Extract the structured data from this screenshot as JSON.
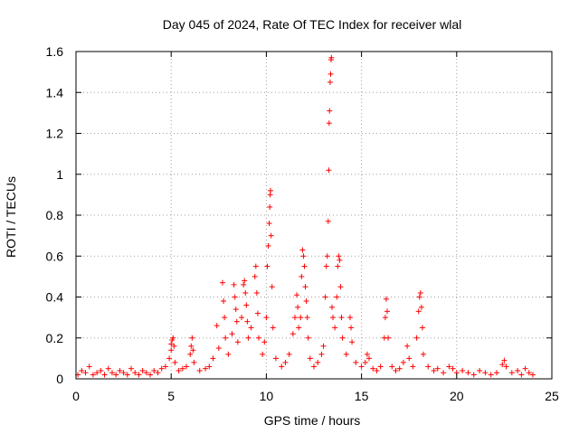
{
  "chart_data": {
    "type": "scatter",
    "title": "Day 045 of 2024, Rate Of TEC Index for receiver wlal",
    "xlabel": "GPS time / hours",
    "ylabel": "ROTI / TECUs",
    "xlim": [
      0,
      25
    ],
    "ylim": [
      0,
      1.6
    ],
    "x_ticks": [
      0,
      5,
      10,
      15,
      20,
      25
    ],
    "x_tick_labels": [
      "0",
      "5",
      "10",
      "15",
      "20",
      "25"
    ],
    "y_ticks": [
      0,
      0.2,
      0.4,
      0.6,
      0.8,
      1,
      1.2,
      1.4,
      1.6
    ],
    "y_tick_labels": [
      "0",
      "0.2",
      "0.4",
      "0.6",
      "0.8",
      "1",
      "1.2",
      "1.4",
      "1.6"
    ],
    "grid": true,
    "marker": "+",
    "series": [
      {
        "name": "ROTI",
        "color": "#ff0000",
        "points": [
          [
            0.1,
            0.02
          ],
          [
            0.3,
            0.04
          ],
          [
            0.5,
            0.03
          ],
          [
            0.7,
            0.06
          ],
          [
            0.9,
            0.02
          ],
          [
            1.1,
            0.03
          ],
          [
            1.3,
            0.04
          ],
          [
            1.5,
            0.02
          ],
          [
            1.7,
            0.05
          ],
          [
            1.9,
            0.03
          ],
          [
            2.1,
            0.02
          ],
          [
            2.3,
            0.04
          ],
          [
            2.5,
            0.03
          ],
          [
            2.7,
            0.02
          ],
          [
            2.9,
            0.05
          ],
          [
            3.1,
            0.03
          ],
          [
            3.3,
            0.02
          ],
          [
            3.5,
            0.04
          ],
          [
            3.7,
            0.03
          ],
          [
            3.9,
            0.02
          ],
          [
            4.1,
            0.04
          ],
          [
            4.3,
            0.03
          ],
          [
            4.5,
            0.05
          ],
          [
            4.7,
            0.06
          ],
          [
            4.9,
            0.1
          ],
          [
            5.0,
            0.14
          ],
          [
            5.0,
            0.17
          ],
          [
            5.05,
            0.19
          ],
          [
            5.1,
            0.2
          ],
          [
            5.15,
            0.16
          ],
          [
            5.2,
            0.08
          ],
          [
            5.4,
            0.04
          ],
          [
            5.6,
            0.05
          ],
          [
            5.8,
            0.06
          ],
          [
            6.0,
            0.12
          ],
          [
            6.05,
            0.16
          ],
          [
            6.1,
            0.2
          ],
          [
            6.15,
            0.14
          ],
          [
            6.2,
            0.08
          ],
          [
            6.5,
            0.04
          ],
          [
            6.8,
            0.05
          ],
          [
            7.0,
            0.06
          ],
          [
            7.2,
            0.1
          ],
          [
            7.4,
            0.26
          ],
          [
            7.5,
            0.15
          ],
          [
            7.7,
            0.47
          ],
          [
            7.75,
            0.38
          ],
          [
            7.8,
            0.3
          ],
          [
            7.85,
            0.2
          ],
          [
            8.0,
            0.12
          ],
          [
            8.2,
            0.22
          ],
          [
            8.3,
            0.46
          ],
          [
            8.35,
            0.4
          ],
          [
            8.4,
            0.34
          ],
          [
            8.45,
            0.28
          ],
          [
            8.5,
            0.18
          ],
          [
            8.7,
            0.3
          ],
          [
            8.8,
            0.46
          ],
          [
            8.85,
            0.48
          ],
          [
            8.9,
            0.42
          ],
          [
            8.95,
            0.36
          ],
          [
            9.0,
            0.28
          ],
          [
            9.05,
            0.2
          ],
          [
            9.2,
            0.25
          ],
          [
            9.4,
            0.5
          ],
          [
            9.45,
            0.55
          ],
          [
            9.5,
            0.42
          ],
          [
            9.55,
            0.32
          ],
          [
            9.6,
            0.2
          ],
          [
            9.8,
            0.12
          ],
          [
            9.9,
            0.18
          ],
          [
            10.0,
            0.3
          ],
          [
            10.05,
            0.55
          ],
          [
            10.1,
            0.65
          ],
          [
            10.15,
            0.76
          ],
          [
            10.18,
            0.84
          ],
          [
            10.2,
            0.9
          ],
          [
            10.22,
            0.92
          ],
          [
            10.25,
            0.7
          ],
          [
            10.3,
            0.45
          ],
          [
            10.35,
            0.25
          ],
          [
            10.5,
            0.1
          ],
          [
            10.8,
            0.06
          ],
          [
            11.0,
            0.08
          ],
          [
            11.2,
            0.12
          ],
          [
            11.4,
            0.22
          ],
          [
            11.5,
            0.3
          ],
          [
            11.6,
            0.41
          ],
          [
            11.65,
            0.35
          ],
          [
            11.7,
            0.25
          ],
          [
            11.8,
            0.3
          ],
          [
            11.85,
            0.5
          ],
          [
            11.9,
            0.63
          ],
          [
            11.95,
            0.6
          ],
          [
            12.0,
            0.55
          ],
          [
            12.05,
            0.45
          ],
          [
            12.1,
            0.38
          ],
          [
            12.15,
            0.3
          ],
          [
            12.2,
            0.2
          ],
          [
            12.3,
            0.1
          ],
          [
            12.5,
            0.06
          ],
          [
            12.7,
            0.08
          ],
          [
            12.9,
            0.12
          ],
          [
            13.0,
            0.16
          ],
          [
            13.1,
            0.4
          ],
          [
            13.15,
            0.55
          ],
          [
            13.2,
            0.6
          ],
          [
            13.25,
            0.77
          ],
          [
            13.28,
            1.02
          ],
          [
            13.3,
            1.25
          ],
          [
            13.32,
            1.31
          ],
          [
            13.35,
            1.45
          ],
          [
            13.38,
            1.49
          ],
          [
            13.4,
            1.56
          ],
          [
            13.42,
            1.57
          ],
          [
            13.45,
            0.35
          ],
          [
            13.5,
            0.3
          ],
          [
            13.6,
            0.25
          ],
          [
            13.7,
            0.4
          ],
          [
            13.75,
            0.55
          ],
          [
            13.8,
            0.6
          ],
          [
            13.85,
            0.58
          ],
          [
            13.9,
            0.45
          ],
          [
            13.95,
            0.3
          ],
          [
            14.0,
            0.2
          ],
          [
            14.2,
            0.12
          ],
          [
            14.4,
            0.3
          ],
          [
            14.45,
            0.25
          ],
          [
            14.5,
            0.18
          ],
          [
            14.7,
            0.08
          ],
          [
            15.0,
            0.06
          ],
          [
            15.2,
            0.08
          ],
          [
            15.3,
            0.12
          ],
          [
            15.4,
            0.1
          ],
          [
            15.6,
            0.05
          ],
          [
            15.8,
            0.04
          ],
          [
            16.0,
            0.06
          ],
          [
            16.2,
            0.2
          ],
          [
            16.25,
            0.3
          ],
          [
            16.3,
            0.39
          ],
          [
            16.35,
            0.33
          ],
          [
            16.4,
            0.2
          ],
          [
            16.6,
            0.06
          ],
          [
            16.8,
            0.04
          ],
          [
            17.0,
            0.05
          ],
          [
            17.2,
            0.08
          ],
          [
            17.4,
            0.16
          ],
          [
            17.5,
            0.1
          ],
          [
            17.7,
            0.06
          ],
          [
            17.9,
            0.2
          ],
          [
            18.0,
            0.33
          ],
          [
            18.05,
            0.4
          ],
          [
            18.1,
            0.42
          ],
          [
            18.15,
            0.35
          ],
          [
            18.2,
            0.25
          ],
          [
            18.25,
            0.12
          ],
          [
            18.5,
            0.06
          ],
          [
            18.8,
            0.04
          ],
          [
            19.0,
            0.05
          ],
          [
            19.3,
            0.03
          ],
          [
            19.6,
            0.06
          ],
          [
            19.8,
            0.05
          ],
          [
            20.0,
            0.03
          ],
          [
            20.3,
            0.04
          ],
          [
            20.6,
            0.03
          ],
          [
            20.9,
            0.02
          ],
          [
            21.2,
            0.04
          ],
          [
            21.5,
            0.03
          ],
          [
            21.8,
            0.02
          ],
          [
            22.1,
            0.03
          ],
          [
            22.4,
            0.07
          ],
          [
            22.5,
            0.09
          ],
          [
            22.6,
            0.06
          ],
          [
            22.9,
            0.03
          ],
          [
            23.2,
            0.04
          ],
          [
            23.4,
            0.02
          ],
          [
            23.6,
            0.05
          ],
          [
            23.8,
            0.03
          ],
          [
            24.0,
            0.02
          ]
        ]
      }
    ]
  }
}
